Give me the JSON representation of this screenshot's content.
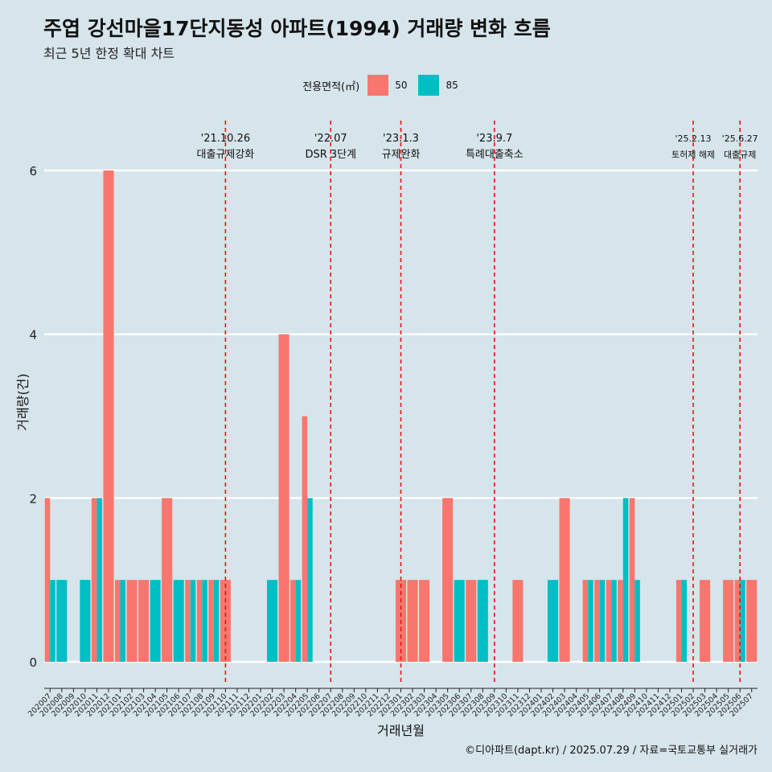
{
  "title": "주엽 강선마을17단지동성 아파트(1994) 거래량 변화 흐름",
  "subtitle": "최근 5년 한정 확대 차트",
  "caption": "©디아파트(dapt.kr) / 2025.07.29 / 자료=국토교통부 실거래가",
  "legend": {
    "title": "전용면적(㎡)",
    "items": [
      {
        "label": "50",
        "color": "#f8766d"
      },
      {
        "label": "85",
        "color": "#00bfc4"
      }
    ]
  },
  "chart_data": {
    "type": "bar",
    "xlabel": "거래년월",
    "ylabel": "거래량(건)",
    "ylim": [
      0,
      6
    ],
    "yticks": [
      0,
      2,
      4,
      6
    ],
    "grid": "horizontal",
    "legend_position": "top",
    "categories": [
      "202007",
      "202008",
      "202009",
      "202010",
      "202011",
      "202012",
      "202101",
      "202102",
      "202103",
      "202104",
      "202105",
      "202106",
      "202107",
      "202108",
      "202109",
      "202110",
      "202111",
      "202112",
      "202201",
      "202202",
      "202203",
      "202204",
      "202205",
      "202206",
      "202207",
      "202208",
      "202209",
      "202210",
      "202211",
      "202212",
      "202301",
      "202302",
      "202303",
      "202304",
      "202305",
      "202306",
      "202307",
      "202308",
      "202309",
      "202310",
      "202311",
      "202312",
      "202401",
      "202402",
      "202403",
      "202404",
      "202405",
      "202406",
      "202407",
      "202408",
      "202409",
      "202410",
      "202411",
      "202412",
      "202501",
      "202502",
      "202503",
      "202504",
      "202505",
      "202506",
      "202507"
    ],
    "series": [
      {
        "name": "50",
        "values": [
          2,
          0,
          0,
          0,
          2,
          6,
          1,
          1,
          1,
          0,
          2,
          0,
          1,
          1,
          1,
          1,
          0,
          0,
          0,
          0,
          4,
          1,
          3,
          0,
          0,
          0,
          0,
          0,
          0,
          0,
          1,
          1,
          1,
          0,
          2,
          0,
          1,
          0,
          0,
          0,
          1,
          0,
          0,
          0,
          2,
          0,
          1,
          1,
          1,
          1,
          2,
          0,
          0,
          0,
          1,
          0,
          1,
          0,
          1,
          1,
          1
        ]
      },
      {
        "name": "85",
        "values": [
          1,
          1,
          0,
          1,
          2,
          0,
          1,
          0,
          0,
          1,
          0,
          1,
          1,
          1,
          1,
          0,
          0,
          0,
          0,
          1,
          0,
          1,
          2,
          0,
          0,
          0,
          0,
          0,
          0,
          0,
          0,
          0,
          0,
          0,
          0,
          1,
          0,
          1,
          0,
          0,
          0,
          0,
          0,
          1,
          0,
          0,
          1,
          1,
          1,
          2,
          1,
          0,
          0,
          0,
          1,
          0,
          0,
          0,
          0,
          1,
          0
        ]
      }
    ],
    "events": [
      {
        "x": "202110",
        "date": "'21.10.26",
        "label": "대출규제강화"
      },
      {
        "x": "202207",
        "date": "'22.07",
        "label": "DSR 3단계"
      },
      {
        "x": "202301",
        "date": "'23.1.3",
        "label": "규제완화"
      },
      {
        "x": "202309",
        "date": "'23.9.7",
        "label": "특례대출축소"
      },
      {
        "x": "202502",
        "date": "'25.2.13",
        "label": "토허제 해제"
      },
      {
        "x": "202506",
        "date": "'25.6.27",
        "label": "대출규제"
      }
    ]
  }
}
